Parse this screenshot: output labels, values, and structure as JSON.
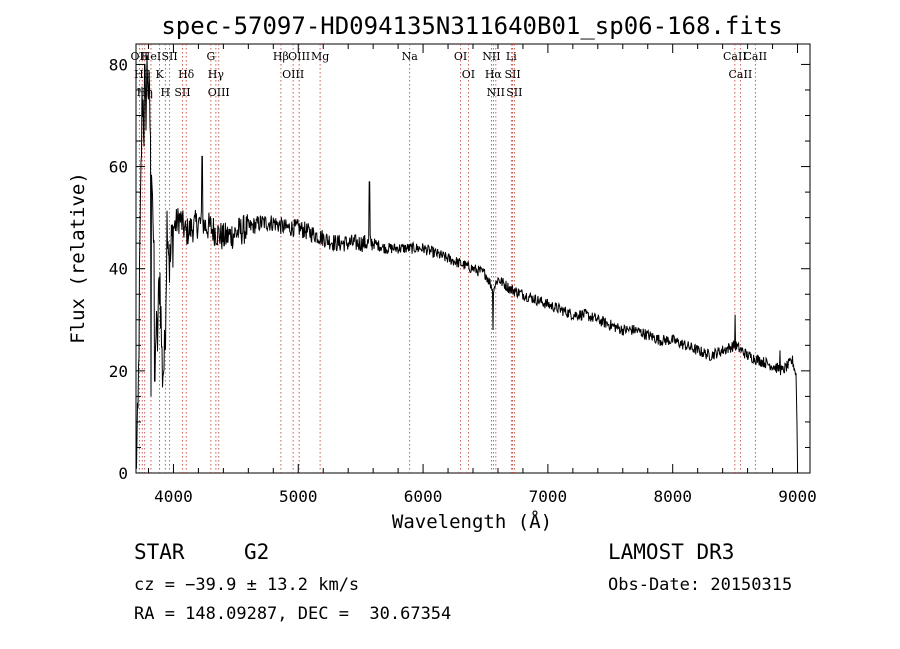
{
  "chart_data": {
    "type": "line",
    "title": "spec-57097-HD094135N311640B01_sp06-168.fits",
    "xlabel": "Wavelength (Å)",
    "ylabel": "Flux (relative)",
    "xlim": [
      3700,
      9100
    ],
    "ylim": [
      0,
      84
    ],
    "xticks": [
      4000,
      5000,
      6000,
      7000,
      8000,
      9000
    ],
    "yticks": [
      0,
      20,
      40,
      60,
      80
    ],
    "grid": false,
    "series": [
      {
        "name": "flux",
        "color": "#000000",
        "anchors": [
          [
            3700,
            2
          ],
          [
            3715,
            8
          ],
          [
            3730,
            40
          ],
          [
            3750,
            75
          ],
          [
            3770,
            65
          ],
          [
            3790,
            80
          ],
          [
            3810,
            70
          ],
          [
            3830,
            60
          ],
          [
            3850,
            30
          ],
          [
            3870,
            25
          ],
          [
            3890,
            40
          ],
          [
            3910,
            20
          ],
          [
            3930,
            22
          ],
          [
            3950,
            52
          ],
          [
            3970,
            40
          ],
          [
            4000,
            48
          ],
          [
            4050,
            50
          ],
          [
            4100,
            47
          ],
          [
            4200,
            49
          ],
          [
            4300,
            48
          ],
          [
            4400,
            46
          ],
          [
            4500,
            47
          ],
          [
            4600,
            48
          ],
          [
            4700,
            49
          ],
          [
            4800,
            49
          ],
          [
            4900,
            48
          ],
          [
            5000,
            48
          ],
          [
            5100,
            47
          ],
          [
            5200,
            46
          ],
          [
            5300,
            45
          ],
          [
            5400,
            45
          ],
          [
            5500,
            45
          ],
          [
            5600,
            45
          ],
          [
            5700,
            44
          ],
          [
            5800,
            44
          ],
          [
            5900,
            44
          ],
          [
            6000,
            44
          ],
          [
            6100,
            43
          ],
          [
            6200,
            42
          ],
          [
            6300,
            41
          ],
          [
            6400,
            40
          ],
          [
            6500,
            39
          ],
          [
            6560,
            36
          ],
          [
            6600,
            38
          ],
          [
            6700,
            36
          ],
          [
            6800,
            35
          ],
          [
            6900,
            34
          ],
          [
            7000,
            33
          ],
          [
            7100,
            32
          ],
          [
            7200,
            31
          ],
          [
            7300,
            31
          ],
          [
            7400,
            30
          ],
          [
            7500,
            29
          ],
          [
            7600,
            28
          ],
          [
            7700,
            28
          ],
          [
            7800,
            27
          ],
          [
            7900,
            26
          ],
          [
            8000,
            26
          ],
          [
            8100,
            25
          ],
          [
            8200,
            24
          ],
          [
            8300,
            23
          ],
          [
            8400,
            24
          ],
          [
            8500,
            25
          ],
          [
            8600,
            23
          ],
          [
            8700,
            22
          ],
          [
            8800,
            21
          ],
          [
            8880,
            20
          ],
          [
            8920,
            21
          ],
          [
            8960,
            22
          ],
          [
            8990,
            19
          ],
          [
            9000,
            2
          ]
        ],
        "notable_features": [
          {
            "x": 3770,
            "y": 80
          },
          {
            "x": 3820,
            "y": 15
          },
          {
            "x": 3850,
            "y": 18
          },
          {
            "x": 4230,
            "y": 62
          },
          {
            "x": 5570,
            "y": 57
          },
          {
            "x": 6560,
            "y": 28
          },
          {
            "x": 8500,
            "y": 31
          },
          {
            "x": 8860,
            "y": 24
          }
        ]
      }
    ],
    "line_marks": [
      {
        "x": 3727,
        "label": "OII"
      },
      {
        "x": 3750,
        "label": "Hθ"
      },
      {
        "x": 3770,
        "label": "Hη"
      },
      {
        "x": 3820,
        "label": "HeI"
      },
      {
        "x": 3889,
        "label": "K"
      },
      {
        "x": 3935,
        "label": "H"
      },
      {
        "x": 3969,
        "label": "SII"
      },
      {
        "x": 4102,
        "label": "Hδ"
      },
      {
        "x": 4072,
        "label": "SII"
      },
      {
        "x": 4300,
        "label": "G"
      },
      {
        "x": 4340,
        "label": "Hγ"
      },
      {
        "x": 4363,
        "label": "OIII"
      },
      {
        "x": 4861,
        "label": "Hβ"
      },
      {
        "x": 4959,
        "label": "OIII"
      },
      {
        "x": 5007,
        "label": "OIII"
      },
      {
        "x": 5175,
        "label": "Mg"
      },
      {
        "x": 5893,
        "label": "Na"
      },
      {
        "x": 6300,
        "label": "OI"
      },
      {
        "x": 6363,
        "label": "OI"
      },
      {
        "x": 6548,
        "label": "NII"
      },
      {
        "x": 6563,
        "label": "Hα"
      },
      {
        "x": 6583,
        "label": "NII"
      },
      {
        "x": 6707,
        "label": "Li"
      },
      {
        "x": 6717,
        "label": "SII"
      },
      {
        "x": 6731,
        "label": "SII"
      },
      {
        "x": 8498,
        "label": "CaII"
      },
      {
        "x": 8542,
        "label": "CaII"
      },
      {
        "x": 8662,
        "label": "CaII"
      }
    ]
  },
  "info": {
    "class": "STAR",
    "subclass": "G2",
    "survey": "LAMOST DR3",
    "cz": "cz = −39.9 ± 13.2 km/s",
    "obs_date": "Obs-Date: 20150315",
    "radec": "RA = 148.09287, DEC =  30.67354"
  }
}
